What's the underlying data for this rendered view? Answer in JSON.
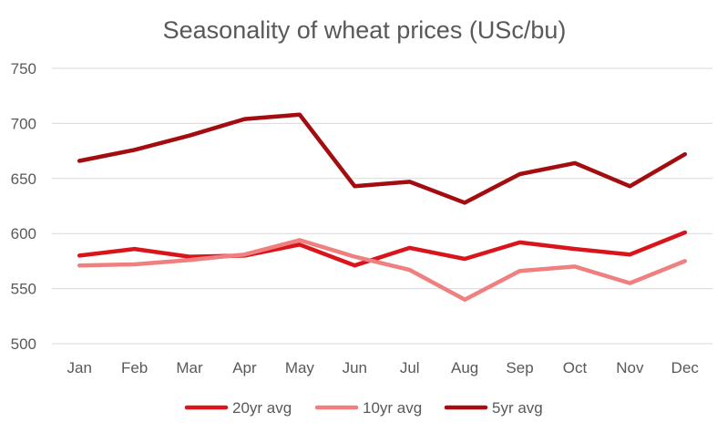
{
  "chart_data": {
    "type": "line",
    "title": "Seasonality of wheat prices (USc/bu)",
    "xlabel": "",
    "ylabel": "",
    "categories": [
      "Jan",
      "Feb",
      "Mar",
      "Apr",
      "May",
      "Jun",
      "Jul",
      "Aug",
      "Sep",
      "Oct",
      "Nov",
      "Dec"
    ],
    "ylim": [
      500,
      750
    ],
    "yticks": [
      500,
      550,
      600,
      650,
      700,
      750
    ],
    "grid": true,
    "legend_position": "bottom",
    "series": [
      {
        "name": "20yr avg",
        "color": "#d9151b",
        "values": [
          580,
          586,
          579,
          580,
          590,
          571,
          587,
          577,
          592,
          586,
          581,
          601
        ]
      },
      {
        "name": "10yr avg",
        "color": "#f08080",
        "values": [
          571,
          572,
          576,
          581,
          594,
          579,
          567,
          540,
          566,
          570,
          555,
          575
        ]
      },
      {
        "name": "5yr avg",
        "color": "#a30d10",
        "values": [
          666,
          676,
          689,
          704,
          708,
          643,
          647,
          628,
          654,
          664,
          643,
          672
        ]
      }
    ]
  }
}
